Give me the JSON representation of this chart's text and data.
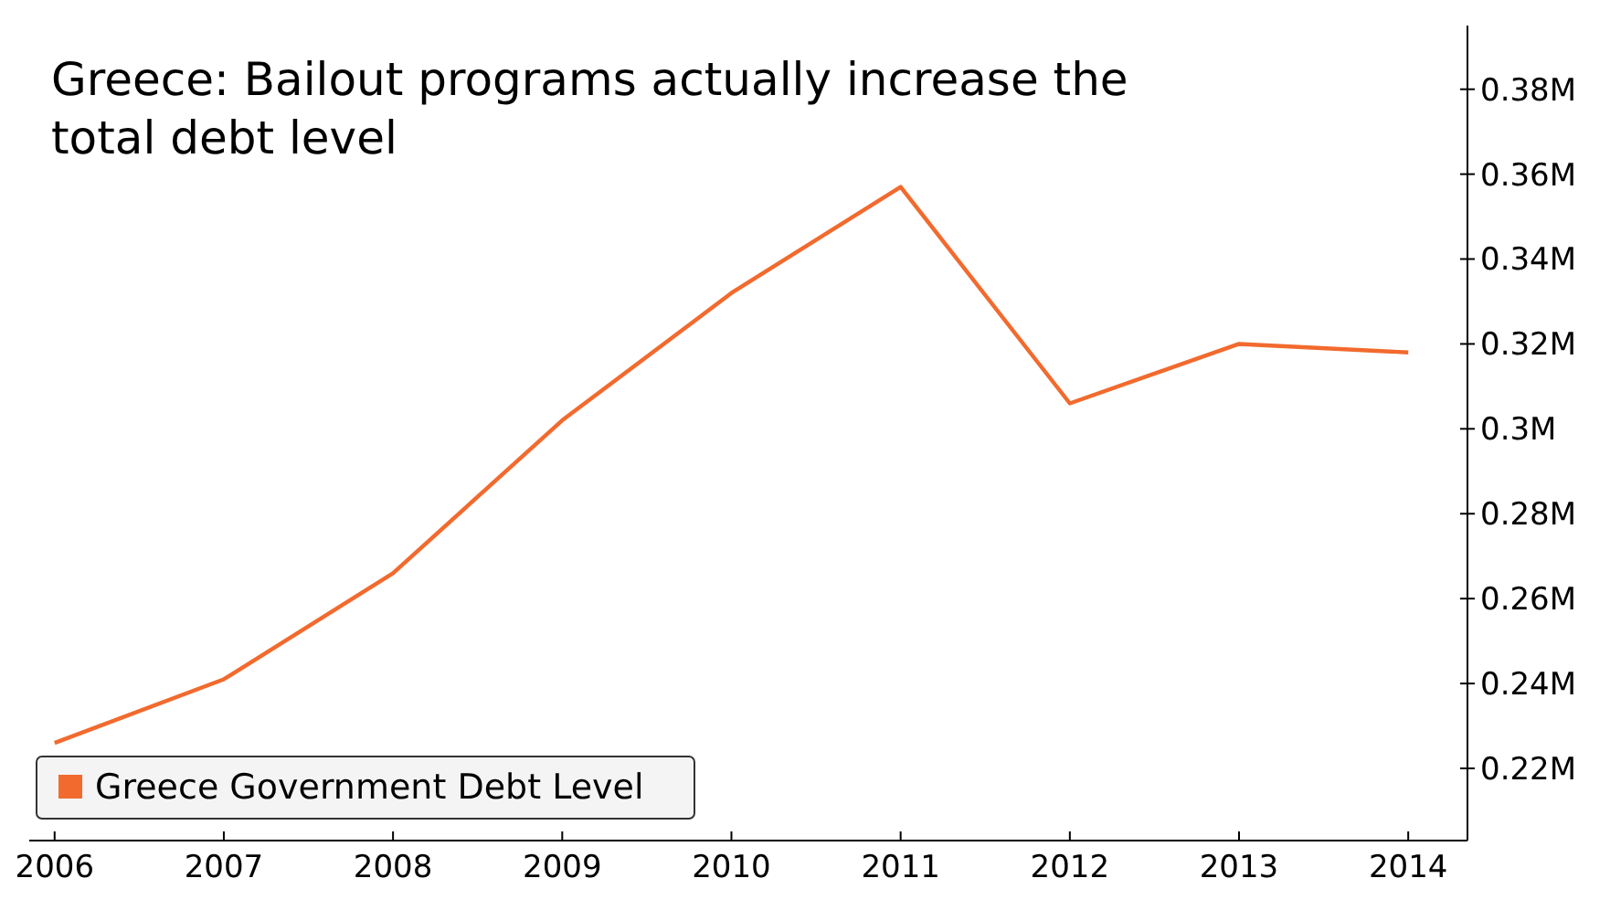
{
  "chart_data": {
    "type": "line",
    "title": "Greece: Bailout programs actually increase the total debt level",
    "x": [
      2006,
      2007,
      2008,
      2009,
      2010,
      2011,
      2012,
      2013,
      2014
    ],
    "series": [
      {
        "name": "Greece Government Debt Level",
        "color": "#f26a2e",
        "values": [
          0.226,
          0.241,
          0.266,
          0.302,
          0.332,
          0.357,
          0.306,
          0.32,
          0.318
        ]
      }
    ],
    "xlim": [
      2005.85,
      2014.35
    ],
    "xticks": [
      2006,
      2007,
      2008,
      2009,
      2010,
      2011,
      2012,
      2013,
      2014
    ],
    "ylim": [
      0.203,
      0.395
    ],
    "yticks": [
      {
        "value": 0.22,
        "label": "0.22M"
      },
      {
        "value": 0.24,
        "label": "0.24M"
      },
      {
        "value": 0.26,
        "label": "0.26M"
      },
      {
        "value": 0.28,
        "label": "0.28M"
      },
      {
        "value": 0.3,
        "label": "0.3M"
      },
      {
        "value": 0.32,
        "label": "0.32M"
      },
      {
        "value": 0.34,
        "label": "0.34M"
      },
      {
        "value": 0.36,
        "label": "0.36M"
      },
      {
        "value": 0.38,
        "label": "0.38M"
      }
    ],
    "grid": false,
    "legend": "bottom left",
    "marker": "none",
    "line_style": "solid"
  }
}
